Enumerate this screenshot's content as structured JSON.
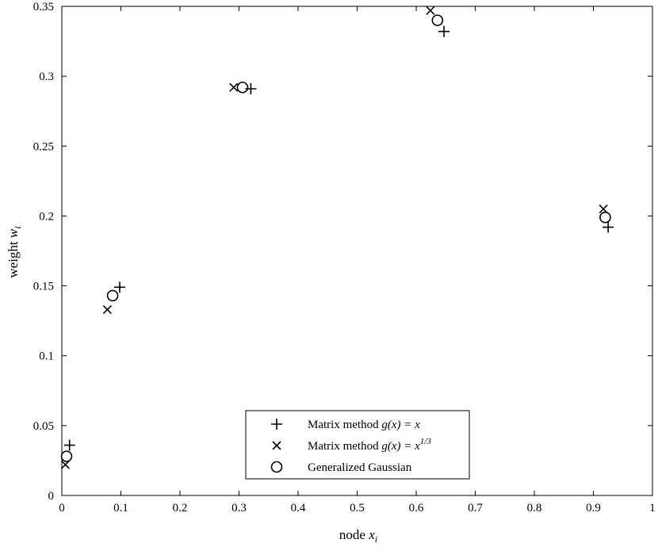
{
  "chart_data": {
    "type": "scatter",
    "title": "",
    "xlabel": {
      "text": "node",
      "var": "x",
      "sub": "i"
    },
    "ylabel": {
      "text": "weight",
      "var": "w",
      "sub": "i"
    },
    "xlim": [
      0,
      1
    ],
    "ylim": [
      0,
      0.35
    ],
    "xticks": [
      "0",
      "0.1",
      "0.2",
      "0.3",
      "0.4",
      "0.5",
      "0.6",
      "0.7",
      "0.8",
      "0.9",
      "1"
    ],
    "yticks": [
      "0",
      "0.05",
      "0.1",
      "0.15",
      "0.2",
      "0.25",
      "0.3",
      "0.35"
    ],
    "grid": false,
    "legend_position": "bottom-center",
    "series": [
      {
        "name": "Matrix method g(x) = x",
        "legend": {
          "prefix": "Matrix method ",
          "func": "g(x) = x",
          "sup": ""
        },
        "marker": "plus",
        "points": [
          [
            0.013,
            0.036
          ],
          [
            0.098,
            0.149
          ],
          [
            0.32,
            0.291
          ],
          [
            0.647,
            0.332
          ],
          [
            0.925,
            0.192
          ]
        ]
      },
      {
        "name": "Matrix method g(x) = x^1/3",
        "legend": {
          "prefix": "Matrix method ",
          "func": "g(x) = x",
          "sup": "1/3"
        },
        "marker": "x",
        "points": [
          [
            0.006,
            0.022
          ],
          [
            0.077,
            0.133
          ],
          [
            0.291,
            0.292
          ],
          [
            0.624,
            0.347
          ],
          [
            0.917,
            0.205
          ]
        ]
      },
      {
        "name": "Generalized Gaussian",
        "legend": {
          "prefix": "Generalized Gaussian",
          "func": "",
          "sup": ""
        },
        "marker": "circle",
        "points": [
          [
            0.008,
            0.028
          ],
          [
            0.086,
            0.143
          ],
          [
            0.306,
            0.292
          ],
          [
            0.636,
            0.34
          ],
          [
            0.92,
            0.199
          ]
        ]
      }
    ]
  }
}
